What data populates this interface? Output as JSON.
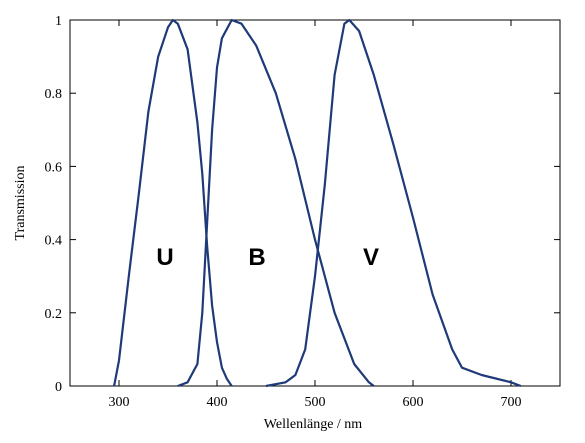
{
  "chart_data": {
    "type": "line",
    "xlabel": "Wellenlänge / nm",
    "ylabel": "Transmission",
    "xlim": [
      250,
      750
    ],
    "xticks": [
      300,
      400,
      500,
      600,
      700
    ],
    "ylim": [
      0,
      1
    ],
    "yticks": [
      0,
      0.2,
      0.4,
      0.6,
      0.8,
      1
    ],
    "series": [
      {
        "name": "U",
        "color": "#1f3a78",
        "x": [
          295,
          300,
          310,
          320,
          330,
          340,
          350,
          355,
          360,
          370,
          380,
          385,
          390,
          395,
          400,
          405,
          410,
          415
        ],
        "values": [
          0,
          0.07,
          0.3,
          0.52,
          0.75,
          0.9,
          0.98,
          1.0,
          0.99,
          0.92,
          0.72,
          0.58,
          0.38,
          0.22,
          0.12,
          0.05,
          0.02,
          0
        ]
      },
      {
        "name": "B",
        "color": "#1f3a78",
        "x": [
          360,
          370,
          380,
          385,
          390,
          395,
          400,
          405,
          415,
          425,
          440,
          460,
          480,
          500,
          520,
          540,
          555,
          560
        ],
        "values": [
          0,
          0.01,
          0.06,
          0.2,
          0.45,
          0.7,
          0.87,
          0.95,
          1.0,
          0.99,
          0.93,
          0.8,
          0.62,
          0.4,
          0.2,
          0.06,
          0.01,
          0
        ]
      },
      {
        "name": "V",
        "color": "#1f3a78",
        "x": [
          450,
          470,
          480,
          490,
          500,
          510,
          520,
          530,
          535,
          545,
          560,
          580,
          600,
          620,
          640,
          650,
          670,
          700,
          710
        ],
        "values": [
          0,
          0.01,
          0.03,
          0.1,
          0.3,
          0.55,
          0.85,
          0.99,
          1.0,
          0.97,
          0.85,
          0.66,
          0.46,
          0.25,
          0.1,
          0.05,
          0.03,
          0.01,
          0
        ]
      }
    ]
  }
}
